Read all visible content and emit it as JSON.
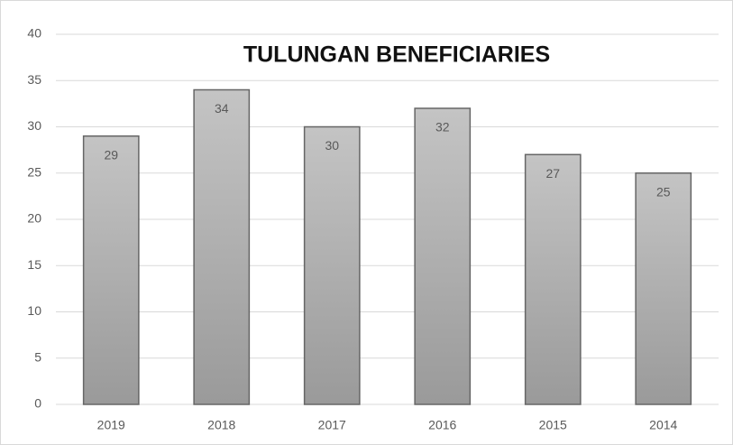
{
  "chart_data": {
    "type": "bar",
    "title": "TULUNGAN BENEFICIARIES",
    "categories": [
      "2019",
      "2018",
      "2017",
      "2016",
      "2015",
      "2014"
    ],
    "values": [
      29,
      34,
      30,
      32,
      27,
      25
    ],
    "color": "#c4c4c4",
    "ylim": [
      0,
      40
    ],
    "yticks": [
      0,
      5,
      10,
      15,
      20,
      25,
      30,
      35,
      40
    ],
    "grid": true,
    "data_labels": true
  }
}
